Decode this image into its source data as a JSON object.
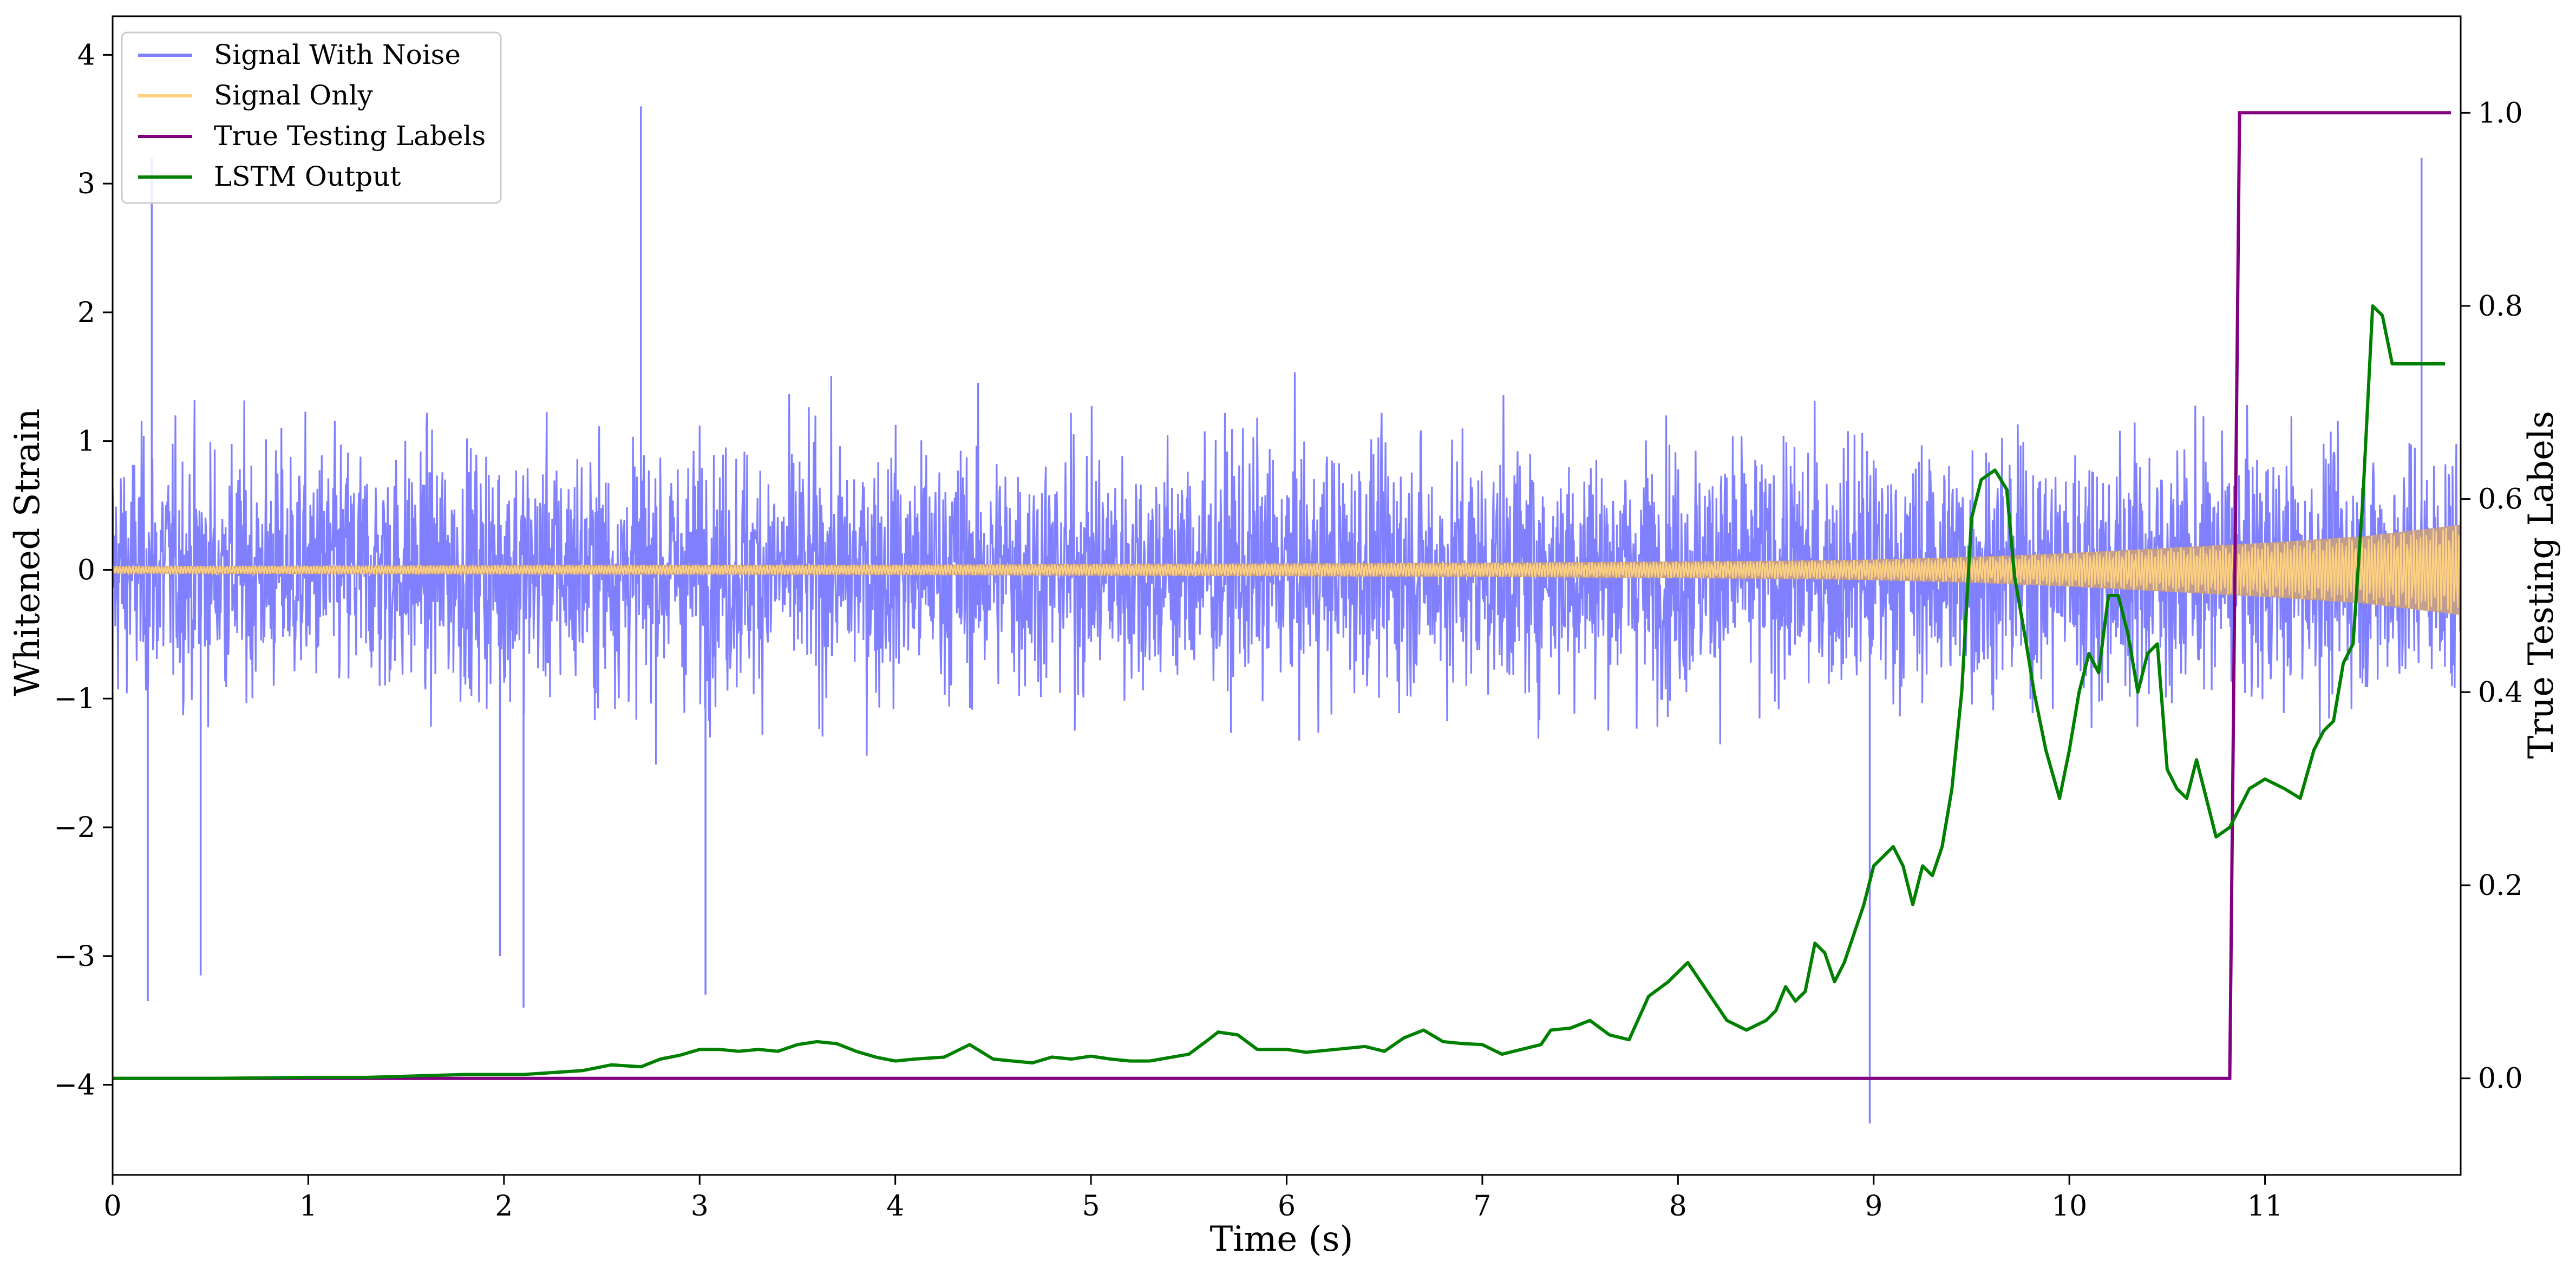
{
  "chart_data": {
    "type": "line",
    "xlabel": "Time (s)",
    "ylabel_left": "Whitened Strain",
    "ylabel_right": "True Testing Labels",
    "xlim": [
      0,
      12
    ],
    "ylim_left": [
      -4.7,
      4.3
    ],
    "ylim_right": [
      -0.1,
      1.1
    ],
    "x_ticks": [
      0,
      1,
      2,
      3,
      4,
      5,
      6,
      7,
      8,
      9,
      10,
      11
    ],
    "y_ticks_left": [
      -4,
      -3,
      -2,
      -1,
      0,
      1,
      2,
      3,
      4
    ],
    "y_ticks_right": [
      0.0,
      0.2,
      0.4,
      0.6,
      0.8,
      1.0
    ],
    "grid": false,
    "legend_position": "top-left",
    "colors": {
      "signal_with_noise": "#8080ff",
      "signal_only": "#ffd27f",
      "overlap_fill": "#c39c8a",
      "true_labels": "#800080",
      "lstm_output": "#008000"
    },
    "series": [
      {
        "name": "Signal With Noise",
        "axis": "left",
        "description_values": {
          "typical_envelope": [
            -1.5,
            1.5
          ],
          "spike_peaks": [
            {
              "x": 0.18,
              "y": -3.35
            },
            {
              "x": 0.2,
              "y": 3.2
            },
            {
              "x": 0.45,
              "y": -3.15
            },
            {
              "x": 1.98,
              "y": -3.0
            },
            {
              "x": 2.1,
              "y": -3.4
            },
            {
              "x": 2.7,
              "y": 3.6
            },
            {
              "x": 3.03,
              "y": -3.3
            },
            {
              "x": 8.98,
              "y": -4.3
            },
            {
              "x": 11.8,
              "y": 3.2
            }
          ]
        }
      },
      {
        "name": "Signal Only",
        "axis": "left",
        "envelope": {
          "x": [
            0,
            2,
            4,
            6,
            7,
            8,
            8.5,
            9,
            9.5,
            10,
            10.5,
            11,
            11.5,
            12
          ],
          "amplitude": [
            0.03,
            0.035,
            0.04,
            0.05,
            0.055,
            0.065,
            0.07,
            0.08,
            0.1,
            0.13,
            0.17,
            0.21,
            0.26,
            0.35
          ]
        }
      },
      {
        "name": "True Testing Labels",
        "axis": "right",
        "x": [
          0,
          10.82,
          10.87,
          11.95
        ],
        "y": [
          0,
          0,
          1,
          1
        ]
      },
      {
        "name": "LSTM Output",
        "axis": "right",
        "x": [
          0,
          0.5,
          1,
          1.3,
          1.8,
          2.1,
          2.4,
          2.55,
          2.7,
          2.8,
          2.9,
          3.0,
          3.1,
          3.2,
          3.3,
          3.4,
          3.5,
          3.6,
          3.7,
          3.8,
          3.9,
          4.0,
          4.1,
          4.25,
          4.38,
          4.5,
          4.6,
          4.7,
          4.8,
          4.9,
          5.0,
          5.1,
          5.2,
          5.3,
          5.5,
          5.6,
          5.65,
          5.75,
          5.85,
          6.0,
          6.1,
          6.25,
          6.4,
          6.5,
          6.6,
          6.7,
          6.8,
          6.9,
          7.0,
          7.1,
          7.2,
          7.3,
          7.35,
          7.45,
          7.55,
          7.65,
          7.75,
          7.85,
          7.95,
          8.05,
          8.15,
          8.25,
          8.35,
          8.45,
          8.5,
          8.55,
          8.6,
          8.65,
          8.7,
          8.75,
          8.8,
          8.85,
          8.95,
          9.0,
          9.1,
          9.15,
          9.2,
          9.25,
          9.3,
          9.35,
          9.4,
          9.45,
          9.5,
          9.55,
          9.62,
          9.68,
          9.72,
          9.78,
          9.82,
          9.88,
          9.95,
          10.0,
          10.05,
          10.1,
          10.15,
          10.2,
          10.25,
          10.3,
          10.35,
          10.4,
          10.45,
          10.5,
          10.55,
          10.6,
          10.65,
          10.7,
          10.75,
          10.82,
          10.87,
          10.92,
          11.0,
          11.1,
          11.18,
          11.25,
          11.3,
          11.35,
          11.4,
          11.45,
          11.5,
          11.55,
          11.6,
          11.65,
          11.72,
          11.78,
          11.83,
          11.88,
          11.92
        ],
        "y": [
          0,
          0,
          0.001,
          0.001,
          0.004,
          0.004,
          0.008,
          0.014,
          0.012,
          0.02,
          0.024,
          0.03,
          0.03,
          0.028,
          0.03,
          0.028,
          0.035,
          0.038,
          0.036,
          0.028,
          0.022,
          0.018,
          0.02,
          0.022,
          0.035,
          0.02,
          0.018,
          0.016,
          0.022,
          0.02,
          0.023,
          0.02,
          0.018,
          0.018,
          0.025,
          0.04,
          0.048,
          0.045,
          0.03,
          0.03,
          0.027,
          0.03,
          0.033,
          0.028,
          0.042,
          0.05,
          0.038,
          0.036,
          0.035,
          0.025,
          0.03,
          0.035,
          0.05,
          0.052,
          0.06,
          0.045,
          0.04,
          0.085,
          0.1,
          0.12,
          0.09,
          0.06,
          0.05,
          0.06,
          0.07,
          0.095,
          0.08,
          0.09,
          0.14,
          0.13,
          0.1,
          0.12,
          0.18,
          0.22,
          0.24,
          0.22,
          0.18,
          0.22,
          0.21,
          0.24,
          0.3,
          0.4,
          0.58,
          0.62,
          0.63,
          0.61,
          0.52,
          0.45,
          0.4,
          0.34,
          0.29,
          0.34,
          0.4,
          0.44,
          0.42,
          0.5,
          0.5,
          0.46,
          0.4,
          0.44,
          0.45,
          0.32,
          0.3,
          0.29,
          0.33,
          0.29,
          0.25,
          0.26,
          0.28,
          0.3,
          0.31,
          0.3,
          0.29,
          0.34,
          0.36,
          0.37,
          0.43,
          0.45,
          0.6,
          0.8,
          0.79,
          0.74,
          0.74,
          0.74,
          0.74,
          0.74,
          0.74
        ]
      }
    ]
  }
}
